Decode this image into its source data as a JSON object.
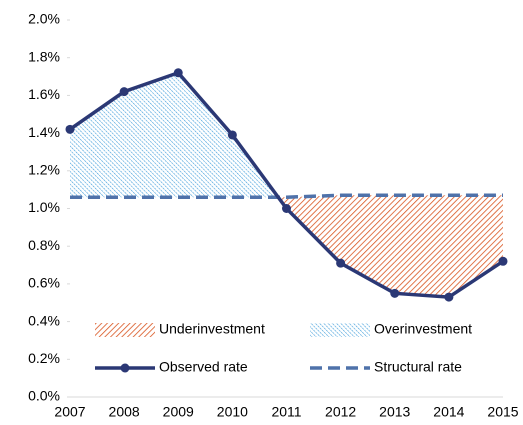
{
  "chart_data": {
    "type": "line",
    "categories": [
      "2007",
      "2008",
      "2009",
      "2010",
      "2011",
      "2012",
      "2013",
      "2014",
      "2015"
    ],
    "series": [
      {
        "name": "Observed rate",
        "color": "#2b3875",
        "values": [
          1.42,
          1.62,
          1.72,
          1.39,
          1.0,
          0.71,
          0.55,
          0.53,
          0.72
        ]
      },
      {
        "name": "Structural rate",
        "color": "#4f72aa",
        "dashed": true,
        "values": [
          1.06,
          1.06,
          1.06,
          1.06,
          1.06,
          1.07,
          1.07,
          1.07,
          1.07
        ]
      }
    ],
    "fills": [
      {
        "name": "Underinvestment",
        "color": "#d9531e"
      },
      {
        "name": "Overinvestment",
        "color": "#3a9ad9"
      }
    ],
    "ylim": [
      0,
      2.0
    ],
    "yticks": [
      {
        "value": 0,
        "label": "0.0%"
      },
      {
        "value": 0.2,
        "label": "0.2%"
      },
      {
        "value": 0.4,
        "label": "0.4%"
      },
      {
        "value": 0.6,
        "label": "0.6%"
      },
      {
        "value": 0.8,
        "label": "0.8%"
      },
      {
        "value": 1.0,
        "label": "1.0%"
      },
      {
        "value": 1.2,
        "label": "1.2%"
      },
      {
        "value": 1.4,
        "label": "1.4%"
      },
      {
        "value": 1.6,
        "label": "1.6%"
      },
      {
        "value": 1.8,
        "label": "1.8%"
      },
      {
        "value": 2.0,
        "label": "2.0%"
      }
    ]
  }
}
